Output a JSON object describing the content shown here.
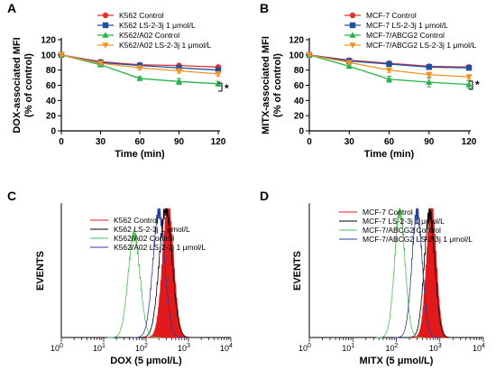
{
  "chart_data": [
    {
      "id": "A",
      "type": "line",
      "panel_label": "A",
      "xlabel": "Time (min)",
      "ylabel_line1": "DOX-associated MFI",
      "ylabel_line2": "(% of control)",
      "x": [
        0,
        30,
        60,
        90,
        120
      ],
      "xticks": [
        "0",
        "30",
        "60",
        "90",
        "120"
      ],
      "ylim": [
        0,
        120
      ],
      "yticks": [
        "0",
        "20",
        "40",
        "60",
        "80",
        "100",
        "120"
      ],
      "significance": "*",
      "series": [
        {
          "name": "K562 Control",
          "color": "#e8312f",
          "marker": "circle",
          "values": [
            100,
            91,
            87,
            86,
            84
          ],
          "err": [
            0,
            1.5,
            2,
            2,
            2
          ]
        },
        {
          "name": "K562 LS-2-3j 1 μmol/L",
          "color": "#1d4fa3",
          "marker": "square",
          "values": [
            100,
            90,
            86,
            83,
            80
          ],
          "err": [
            0,
            1.5,
            2,
            2,
            2
          ]
        },
        {
          "name": "K562/A02 Control",
          "color": "#27b34b",
          "marker": "triangle",
          "values": [
            100,
            87,
            69,
            65,
            62
          ],
          "err": [
            0,
            2,
            2.5,
            4,
            3
          ]
        },
        {
          "name": "K562/A02 LS-2-3j 1 μmol/L",
          "color": "#f39322",
          "marker": "triangle-down",
          "values": [
            100,
            89,
            83,
            79,
            75
          ],
          "err": [
            0,
            2,
            2.5,
            3,
            3
          ]
        }
      ]
    },
    {
      "id": "B",
      "type": "line",
      "panel_label": "B",
      "xlabel": "Time (min)",
      "ylabel_line1": "MITX-associated MFI",
      "ylabel_line2": "(% of control)",
      "x": [
        0,
        30,
        60,
        90,
        120
      ],
      "xticks": [
        "0",
        "30",
        "60",
        "90",
        "120"
      ],
      "ylim": [
        0,
        120
      ],
      "yticks": [
        "0",
        "20",
        "40",
        "60",
        "80",
        "100",
        "120"
      ],
      "significance": "*",
      "series": [
        {
          "name": "MCF-7 Control",
          "color": "#e8312f",
          "marker": "circle",
          "values": [
            100,
            93,
            89,
            85,
            84
          ],
          "err": [
            0,
            1.5,
            2,
            2,
            2
          ]
        },
        {
          "name": "MCF-7 LS-2-3j 1 μmol/L",
          "color": "#1d4fa3",
          "marker": "square",
          "values": [
            100,
            92,
            88,
            84,
            83
          ],
          "err": [
            0,
            1.5,
            2,
            2,
            2
          ]
        },
        {
          "name": "MCF-7/ABCG2 Control",
          "color": "#27b34b",
          "marker": "triangle",
          "values": [
            100,
            85,
            68,
            64,
            61
          ],
          "err": [
            0,
            2,
            4,
            6,
            5
          ]
        },
        {
          "name": "MCF-7/ABCG2 LS-2-3j 1 μmol/L",
          "color": "#f39322",
          "marker": "triangle-down",
          "values": [
            100,
            90,
            80,
            74,
            71
          ],
          "err": [
            0,
            2,
            3,
            3,
            3
          ]
        }
      ]
    },
    {
      "id": "C",
      "type": "histogram",
      "panel_label": "C",
      "xlabel": "DOX (5 μmol/L)",
      "ylabel": "EVENTS",
      "xscale": "log",
      "xlim": [
        1,
        10000
      ],
      "xticks": [
        {
          "b": "10",
          "e": "0"
        },
        {
          "b": "10",
          "e": "1"
        },
        {
          "b": "10",
          "e": "2"
        },
        {
          "b": "10",
          "e": "3"
        },
        {
          "b": "10",
          "e": "4"
        }
      ],
      "series": [
        {
          "name": "K562 Control",
          "color": "#e31a1c",
          "peak": 330,
          "filled": true,
          "width": 0.13,
          "height": 1.0
        },
        {
          "name": "K562 LS-2-3j 1 μmol/L",
          "color": "#000000",
          "peak": 290,
          "filled": false,
          "width": 0.15,
          "height": 1.0
        },
        {
          "name": "K562/A02 Control",
          "color": "#4cc25a",
          "peak": 52,
          "filled": false,
          "width": 0.14,
          "height": 0.8
        },
        {
          "name": "K562/A02 LS-2-3j 1 μmol/L",
          "color": "#2b3c9b",
          "peak": 200,
          "filled": false,
          "width": 0.14,
          "height": 0.97
        }
      ]
    },
    {
      "id": "D",
      "type": "histogram",
      "panel_label": "D",
      "xlabel": "MITX (5 μmol/L)",
      "ylabel": "EVENTS",
      "xscale": "log",
      "xlim": [
        1,
        10000
      ],
      "xticks": [
        {
          "b": "10",
          "e": "0"
        },
        {
          "b": "10",
          "e": "1"
        },
        {
          "b": "10",
          "e": "2"
        },
        {
          "b": "10",
          "e": "3"
        },
        {
          "b": "10",
          "e": "4"
        }
      ],
      "series": [
        {
          "name": "MCF-7 Control",
          "color": "#e31a1c",
          "peak": 640,
          "filled": true,
          "width": 0.11,
          "height": 1.0
        },
        {
          "name": "MCF-7  LS-2-3j 1 μmol/L",
          "color": "#000000",
          "peak": 580,
          "filled": false,
          "width": 0.12,
          "height": 0.97
        },
        {
          "name": "MCF-7/ABCG2 Control",
          "color": "#4cc25a",
          "peak": 120,
          "filled": false,
          "width": 0.12,
          "height": 0.98
        },
        {
          "name": "MCF-7/ABCG2 LS-2-3j 1 μmol/L",
          "color": "#2b3c9b",
          "peak": 300,
          "filled": false,
          "width": 0.12,
          "height": 0.97
        }
      ]
    }
  ]
}
